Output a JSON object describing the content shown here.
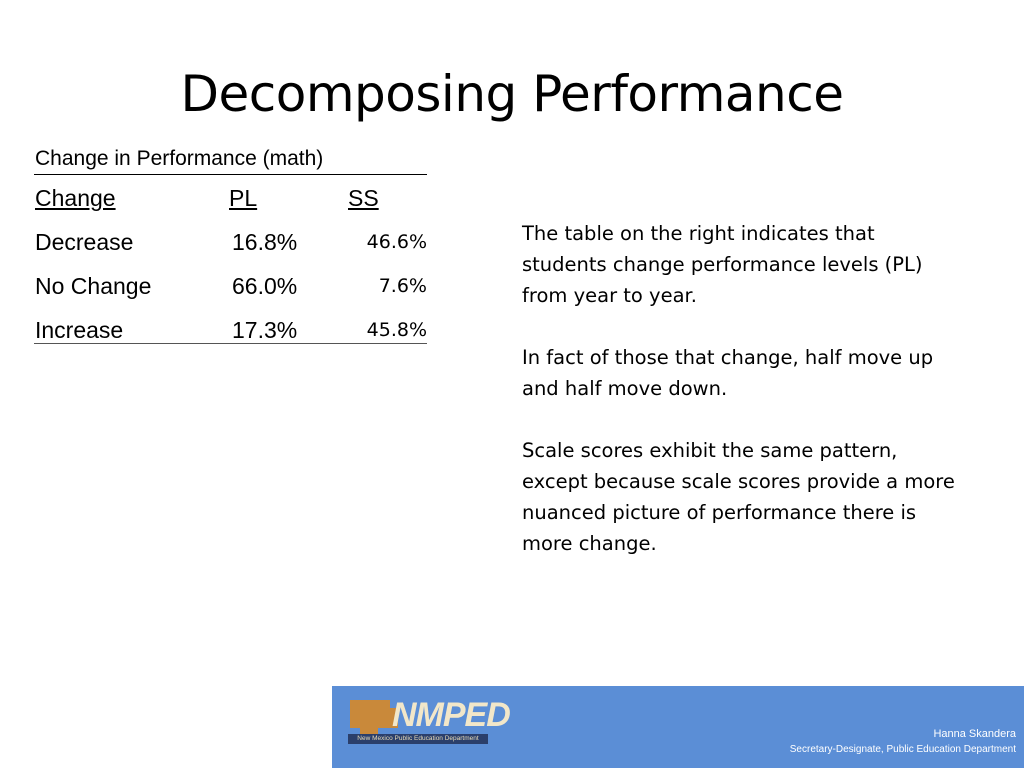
{
  "slide": {
    "title": "Decomposing Performance"
  },
  "table": {
    "caption": "Change in Performance (math)",
    "headers": [
      "Change",
      "PL",
      "SS"
    ],
    "rows": [
      {
        "change": "Decrease",
        "pl": "16.8%",
        "ss": "46.6%"
      },
      {
        "change": "No Change",
        "pl": "66.0%",
        "ss": "7.6%"
      },
      {
        "change": "Increase",
        "pl": "17.3%",
        "ss": "45.8%"
      }
    ]
  },
  "notes": {
    "paragraphs": [
      "The table on the right indicates that students change performance levels (PL) from year to year.",
      "In fact of those that change, half move up and half move down.",
      "Scale scores exhibit the same pattern, except because scale scores provide a more nuanced picture of performance there is more change."
    ]
  },
  "footer": {
    "logo_text": "NMPED",
    "logo_subtitle": "New Mexico Public Education Department",
    "name": "Hanna Skandera",
    "role": "Secretary-Designate, Public Education Department",
    "background_color": "#5b8ed6",
    "logo_shape_color": "#c9893a"
  }
}
